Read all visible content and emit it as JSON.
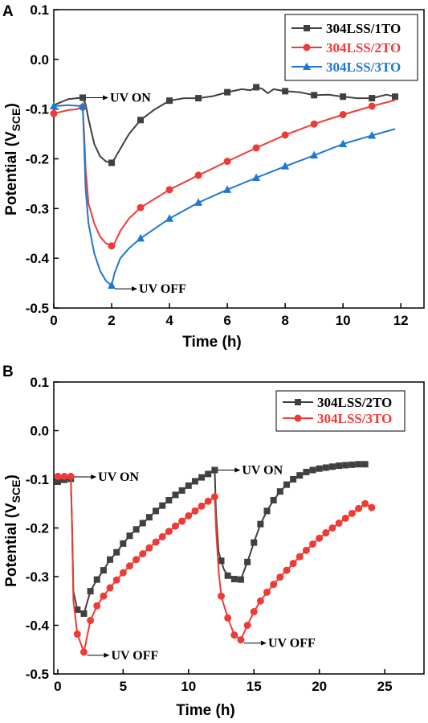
{
  "chart_data": [
    {
      "panel": "A",
      "type": "line",
      "xlabel": "Time (h)",
      "ylabel": "Potential (V",
      "ylabel_sub": "SCE",
      "ylabel_close": ")",
      "xlim": [
        0,
        12.8
      ],
      "ylim": [
        -0.5,
        0.1
      ],
      "xticks": [
        0,
        2,
        4,
        6,
        8,
        10,
        12
      ],
      "yticks": [
        0.1,
        0.0,
        -0.1,
        -0.2,
        -0.3,
        -0.4,
        -0.5
      ],
      "ytick_labels": [
        "0.1",
        "0.0",
        "-0.1",
        "-0.2",
        "-0.3",
        "-0.4",
        "-0.5"
      ],
      "legend_position": "top-right",
      "annotations": [
        {
          "text": "UV ON",
          "x": 1.0,
          "y": -0.077
        },
        {
          "text": "UV OFF",
          "x": 2.0,
          "y": -0.455
        }
      ],
      "series": [
        {
          "name": "304LSS/1TO",
          "color": "#404040",
          "marker": "square",
          "x": [
            0,
            0.5,
            1.0,
            1.1,
            1.2,
            1.4,
            1.6,
            1.8,
            2.0,
            2.1,
            2.3,
            2.6,
            3.0,
            3.5,
            4.0,
            4.5,
            5.0,
            5.5,
            6.0,
            6.5,
            6.8,
            7.0,
            7.2,
            7.4,
            7.6,
            8.0,
            8.5,
            9.0,
            9.5,
            10.0,
            10.5,
            11.0,
            11.5,
            11.8
          ],
          "y": [
            -0.092,
            -0.08,
            -0.077,
            -0.09,
            -0.12,
            -0.17,
            -0.195,
            -0.205,
            -0.208,
            -0.2,
            -0.18,
            -0.15,
            -0.122,
            -0.1,
            -0.083,
            -0.078,
            -0.078,
            -0.074,
            -0.066,
            -0.06,
            -0.062,
            -0.056,
            -0.059,
            -0.068,
            -0.06,
            -0.064,
            -0.066,
            -0.072,
            -0.071,
            -0.075,
            -0.078,
            -0.078,
            -0.071,
            -0.075
          ],
          "markers_x": [
            1.0,
            2.0,
            3.0,
            4.0,
            5.0,
            6.0,
            7.0,
            8.0,
            9.0,
            10.0,
            11.0,
            11.8
          ]
        },
        {
          "name": "304LSS/2TO",
          "color": "#ef3b36",
          "marker": "circle",
          "x": [
            0,
            0.5,
            0.8,
            1.0,
            1.05,
            1.1,
            1.2,
            1.4,
            1.6,
            1.8,
            2.0,
            2.1,
            2.3,
            2.6,
            3.0,
            4.0,
            5.0,
            6.0,
            7.0,
            8.0,
            9.0,
            10.0,
            11.0,
            11.8
          ],
          "y": [
            -0.109,
            -0.102,
            -0.1,
            -0.096,
            -0.15,
            -0.22,
            -0.29,
            -0.33,
            -0.356,
            -0.37,
            -0.375,
            -0.37,
            -0.345,
            -0.32,
            -0.298,
            -0.262,
            -0.233,
            -0.205,
            -0.178,
            -0.152,
            -0.13,
            -0.111,
            -0.094,
            -0.082
          ],
          "markers_x": [
            0,
            1.0,
            2.0,
            3.0,
            4.0,
            5.0,
            6.0,
            7.0,
            8.0,
            9.0,
            10.0,
            11.0
          ]
        },
        {
          "name": "304LSS/3TO",
          "color": "#1f77d4",
          "marker": "triangle",
          "x": [
            0,
            0.5,
            1.0,
            1.05,
            1.1,
            1.2,
            1.4,
            1.6,
            1.8,
            2.0,
            2.1,
            2.3,
            2.6,
            3.0,
            4.0,
            5.0,
            6.0,
            7.0,
            8.0,
            9.0,
            10.0,
            11.0,
            11.8
          ],
          "y": [
            -0.094,
            -0.092,
            -0.094,
            -0.17,
            -0.26,
            -0.33,
            -0.39,
            -0.425,
            -0.445,
            -0.455,
            -0.43,
            -0.4,
            -0.38,
            -0.36,
            -0.32,
            -0.288,
            -0.262,
            -0.238,
            -0.215,
            -0.193,
            -0.17,
            -0.153,
            -0.14
          ],
          "markers_x": [
            0,
            1.0,
            2.0,
            3.0,
            4.0,
            5.0,
            6.0,
            7.0,
            8.0,
            9.0,
            10.0,
            11.0
          ]
        }
      ]
    },
    {
      "panel": "B",
      "type": "line",
      "xlabel": "Time (h)",
      "ylabel": "Potential (V",
      "ylabel_sub": "SCE",
      "ylabel_close": ")",
      "xlim": [
        -0.3,
        28
      ],
      "ylim": [
        -0.5,
        0.1
      ],
      "xticks": [
        0,
        5,
        10,
        15,
        20,
        25
      ],
      "yticks": [
        0.1,
        0.0,
        -0.1,
        -0.2,
        -0.3,
        -0.4,
        -0.5
      ],
      "ytick_labels": [
        "0.1",
        "0.0",
        "-0.1",
        "-0.2",
        "-0.3",
        "-0.4",
        "-0.5"
      ],
      "legend_position": "top-right",
      "annotations": [
        {
          "text": "UV ON",
          "x": 1.0,
          "y": -0.095
        },
        {
          "text": "UV OFF",
          "x": 2.0,
          "y": -0.455
        },
        {
          "text": "UV ON",
          "x": 12.0,
          "y": -0.081
        },
        {
          "text": "UV OFF",
          "x": 14.0,
          "y": -0.43
        }
      ],
      "series": [
        {
          "name": "304LSS/2TO",
          "color": "#404040",
          "marker": "square",
          "x": [
            0,
            0.5,
            1.0,
            1.1,
            1.2,
            1.5,
            2.0,
            2.5,
            3,
            3.5,
            4,
            4.5,
            5,
            5.5,
            6,
            6.5,
            7,
            7.5,
            8,
            8.5,
            9,
            9.5,
            10,
            10.5,
            11,
            11.5,
            12,
            12.1,
            12.3,
            12.7,
            13,
            13.5,
            14,
            14.5,
            15,
            15.5,
            16,
            16.5,
            17,
            17.5,
            18,
            18.5,
            19,
            19.5,
            20,
            20.5,
            21,
            21.5,
            22,
            22.5,
            23,
            23.5
          ],
          "y": [
            -0.105,
            -0.101,
            -0.099,
            -0.2,
            -0.33,
            -0.368,
            -0.376,
            -0.33,
            -0.306,
            -0.287,
            -0.265,
            -0.25,
            -0.232,
            -0.216,
            -0.203,
            -0.19,
            -0.178,
            -0.165,
            -0.154,
            -0.143,
            -0.132,
            -0.123,
            -0.113,
            -0.104,
            -0.096,
            -0.089,
            -0.081,
            -0.17,
            -0.25,
            -0.285,
            -0.298,
            -0.305,
            -0.306,
            -0.27,
            -0.23,
            -0.192,
            -0.165,
            -0.143,
            -0.125,
            -0.111,
            -0.1,
            -0.092,
            -0.085,
            -0.081,
            -0.078,
            -0.076,
            -0.074,
            -0.072,
            -0.071,
            -0.07,
            -0.069,
            -0.069
          ],
          "markers_x": [
            0,
            0.5,
            1.0,
            1.5,
            2.0,
            2.5,
            3,
            3.5,
            4,
            4.5,
            5,
            5.5,
            6,
            6.5,
            7,
            7.5,
            8,
            8.5,
            9,
            9.5,
            10,
            10.5,
            11,
            11.5,
            12,
            12.5,
            13,
            13.5,
            14,
            14.5,
            15,
            15.5,
            16,
            16.5,
            17,
            17.5,
            18,
            18.5,
            19,
            19.5,
            20,
            20.5,
            21,
            21.5,
            22,
            22.5,
            23,
            23.5
          ]
        },
        {
          "name": "304LSS/3TO",
          "color": "#ef3b36",
          "marker": "circle",
          "x": [
            0,
            0.5,
            1.0,
            1.1,
            1.2,
            1.5,
            2.0,
            2.5,
            3,
            3.5,
            4,
            4.5,
            5,
            5.5,
            6,
            6.5,
            7,
            7.5,
            8,
            8.5,
            9,
            9.5,
            10,
            10.5,
            11,
            11.5,
            12,
            12.1,
            12.3,
            12.5,
            13,
            13.5,
            14,
            14.5,
            15,
            15.5,
            16,
            16.5,
            17,
            17.5,
            18,
            18.5,
            19,
            19.5,
            20,
            20.5,
            21,
            21.5,
            22,
            22.5,
            23,
            23.5,
            24
          ],
          "y": [
            -0.094,
            -0.094,
            -0.094,
            -0.2,
            -0.35,
            -0.418,
            -0.455,
            -0.39,
            -0.36,
            -0.34,
            -0.323,
            -0.307,
            -0.292,
            -0.278,
            -0.265,
            -0.253,
            -0.241,
            -0.229,
            -0.218,
            -0.207,
            -0.196,
            -0.186,
            -0.175,
            -0.165,
            -0.155,
            -0.145,
            -0.136,
            -0.2,
            -0.29,
            -0.34,
            -0.385,
            -0.42,
            -0.43,
            -0.4,
            -0.372,
            -0.35,
            -0.332,
            -0.316,
            -0.301,
            -0.287,
            -0.273,
            -0.259,
            -0.246,
            -0.233,
            -0.221,
            -0.21,
            -0.2,
            -0.19,
            -0.18,
            -0.17,
            -0.16,
            -0.15,
            -0.158
          ],
          "markers_x": [
            0,
            0.5,
            1.0,
            1.5,
            2.0,
            2.5,
            3,
            3.5,
            4,
            4.5,
            5,
            5.5,
            6,
            6.5,
            7,
            7.5,
            8,
            8.5,
            9,
            9.5,
            10,
            10.5,
            11,
            11.5,
            12,
            12.5,
            13,
            13.5,
            14,
            14.5,
            15,
            15.5,
            16,
            16.5,
            17,
            17.5,
            18,
            18.5,
            19,
            19.5,
            20,
            20.5,
            21,
            21.5,
            22,
            22.5,
            23,
            23.5,
            24
          ]
        }
      ]
    }
  ]
}
